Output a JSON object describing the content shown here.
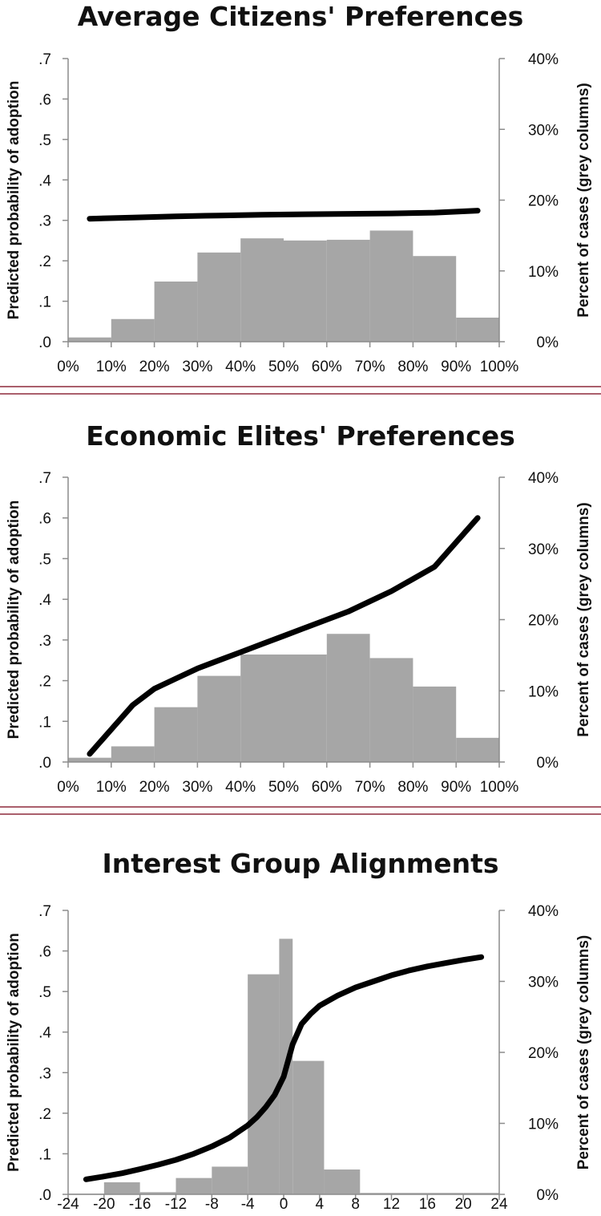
{
  "colors": {
    "bar": "#a6a6a6",
    "line": "#000000",
    "axis": "#8c8c8c",
    "separator": "#8e2a3c"
  },
  "chart_data": [
    {
      "type": "bar",
      "title": "Average Citizens' Preferences",
      "ylabel_left": "Predicted probability of adoption",
      "ylabel_right": "Percent of cases (grey columns)",
      "left_ticks": [
        ".0",
        ".1",
        ".2",
        ".3",
        ".4",
        ".5",
        ".6",
        ".7"
      ],
      "right_ticks": [
        "0%",
        "10%",
        "20%",
        "30%",
        "40%"
      ],
      "x_ticks": [
        "0%",
        "10%",
        "20%",
        "30%",
        "40%",
        "50%",
        "60%",
        "70%",
        "80%",
        "90%",
        "100%"
      ],
      "xlim": [
        0,
        100
      ],
      "ylim_left": [
        0,
        0.7
      ],
      "ylim_right": [
        0,
        40
      ],
      "bars": [
        {
          "x0": 0,
          "x1": 10,
          "value": 0.6
        },
        {
          "x0": 10,
          "x1": 20,
          "value": 3.2
        },
        {
          "x0": 20,
          "x1": 30,
          "value": 8.5
        },
        {
          "x0": 30,
          "x1": 40,
          "value": 12.6
        },
        {
          "x0": 40,
          "x1": 50,
          "value": 14.6
        },
        {
          "x0": 50,
          "x1": 60,
          "value": 14.3
        },
        {
          "x0": 60,
          "x1": 70,
          "value": 14.4
        },
        {
          "x0": 70,
          "x1": 80,
          "value": 15.7
        },
        {
          "x0": 80,
          "x1": 90,
          "value": 12.1
        },
        {
          "x0": 90,
          "x1": 100,
          "value": 3.4
        }
      ],
      "line": {
        "x": [
          5,
          15,
          25,
          35,
          45,
          55,
          65,
          75,
          85,
          95
        ],
        "y": [
          0.304,
          0.307,
          0.31,
          0.312,
          0.314,
          0.315,
          0.316,
          0.317,
          0.319,
          0.324
        ]
      }
    },
    {
      "type": "bar",
      "title": "Economic Elites' Preferences",
      "ylabel_left": "Predicted probability of adoption",
      "ylabel_right": "Percent of cases (grey columns)",
      "left_ticks": [
        ".0",
        ".1",
        ".2",
        ".3",
        ".4",
        ".5",
        ".6",
        ".7"
      ],
      "right_ticks": [
        "0%",
        "10%",
        "20%",
        "30%",
        "40%"
      ],
      "x_ticks": [
        "0%",
        "10%",
        "20%",
        "30%",
        "40%",
        "50%",
        "60%",
        "70%",
        "80%",
        "90%",
        "100%"
      ],
      "xlim": [
        0,
        100
      ],
      "ylim_left": [
        0,
        0.7
      ],
      "ylim_right": [
        0,
        40
      ],
      "bars": [
        {
          "x0": 0,
          "x1": 10,
          "value": 0.6
        },
        {
          "x0": 10,
          "x1": 20,
          "value": 2.2
        },
        {
          "x0": 20,
          "x1": 30,
          "value": 7.7
        },
        {
          "x0": 30,
          "x1": 40,
          "value": 12.1
        },
        {
          "x0": 40,
          "x1": 50,
          "value": 15.1
        },
        {
          "x0": 50,
          "x1": 60,
          "value": 15.1
        },
        {
          "x0": 60,
          "x1": 70,
          "value": 18.0
        },
        {
          "x0": 70,
          "x1": 80,
          "value": 14.6
        },
        {
          "x0": 80,
          "x1": 90,
          "value": 10.6
        },
        {
          "x0": 90,
          "x1": 100,
          "value": 3.4
        }
      ],
      "line": {
        "x": [
          5,
          10,
          15,
          20,
          25,
          30,
          35,
          40,
          45,
          50,
          55,
          60,
          65,
          70,
          75,
          80,
          85,
          90,
          95
        ],
        "y": [
          0.02,
          0.08,
          0.14,
          0.18,
          0.205,
          0.23,
          0.25,
          0.27,
          0.29,
          0.31,
          0.33,
          0.35,
          0.37,
          0.395,
          0.42,
          0.45,
          0.48,
          0.54,
          0.6
        ]
      }
    },
    {
      "type": "bar",
      "title": "Interest Group Alignments",
      "ylabel_left": "Predicted probability of adoption",
      "ylabel_right": "Percent of cases (grey columns)",
      "left_ticks": [
        ".0",
        ".1",
        ".2",
        ".3",
        ".4",
        ".5",
        ".6",
        ".7"
      ],
      "right_ticks": [
        "0%",
        "10%",
        "20%",
        "30%",
        "40%"
      ],
      "x_ticks": [
        "-24",
        "-20",
        "-16",
        "-12",
        "-8",
        "-4",
        "0",
        "4",
        "8",
        "12",
        "16",
        "20",
        "24"
      ],
      "xlim": [
        -24,
        24
      ],
      "ylim_left": [
        0,
        0.7
      ],
      "ylim_right": [
        0,
        40
      ],
      "bars": [
        {
          "x0": -24,
          "x1": -20,
          "value": 0.1
        },
        {
          "x0": -20,
          "x1": -16,
          "value": 1.7
        },
        {
          "x0": -16,
          "x1": -12,
          "value": 0.3
        },
        {
          "x0": -12,
          "x1": -8,
          "value": 2.3
        },
        {
          "x0": -8,
          "x1": -4,
          "value": 3.9
        },
        {
          "x0": -4,
          "x1": -0.5,
          "value": 31.0
        },
        {
          "x0": -0.5,
          "x1": 1,
          "value": 36.0
        },
        {
          "x0": 1,
          "x1": 4.5,
          "value": 18.8
        },
        {
          "x0": 4.5,
          "x1": 8.5,
          "value": 3.5
        },
        {
          "x0": 8.5,
          "x1": 12,
          "value": 0.2
        },
        {
          "x0": 12,
          "x1": 16,
          "value": 0.2
        },
        {
          "x0": 16,
          "x1": 20,
          "value": 0.2
        },
        {
          "x0": 20,
          "x1": 24,
          "value": 0.2
        }
      ],
      "line": {
        "x": [
          -22,
          -20,
          -18,
          -16,
          -14,
          -12,
          -10,
          -8,
          -6,
          -4,
          -3,
          -2,
          -1,
          0,
          1,
          2,
          3,
          4,
          6,
          8,
          10,
          12,
          14,
          16,
          18,
          20,
          22
        ],
        "y": [
          0.037,
          0.044,
          0.052,
          0.062,
          0.073,
          0.085,
          0.1,
          0.118,
          0.14,
          0.17,
          0.19,
          0.215,
          0.245,
          0.29,
          0.37,
          0.42,
          0.445,
          0.465,
          0.49,
          0.51,
          0.525,
          0.54,
          0.552,
          0.562,
          0.57,
          0.578,
          0.585
        ]
      }
    }
  ]
}
